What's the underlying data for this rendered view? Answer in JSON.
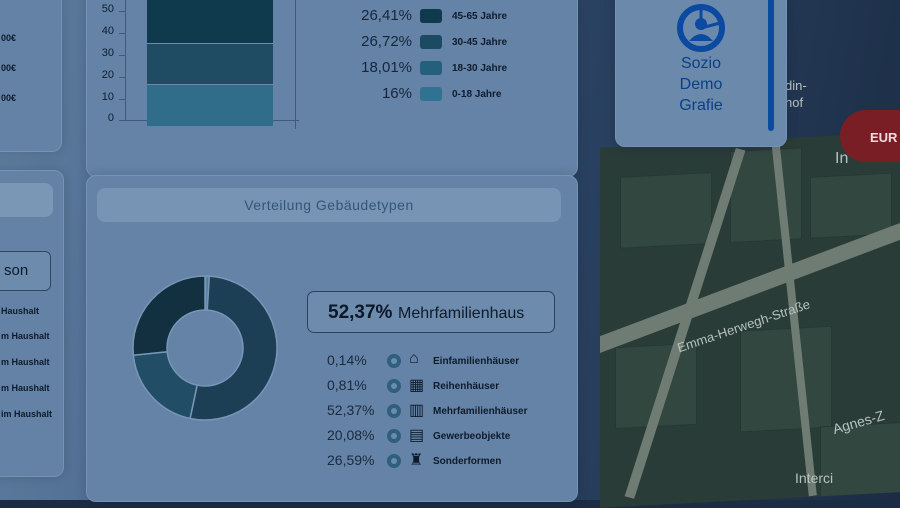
{
  "left_panel": {
    "top_values": [
      "00€",
      "00€",
      "00€"
    ],
    "search_text": "son",
    "household_items": [
      "Haushalt",
      "m Haushalt",
      "m Haushalt",
      "m Haushalt",
      "im Haushalt"
    ]
  },
  "age_chart": {
    "y_ticks": [
      "50",
      "40",
      "30",
      "20",
      "10",
      "0"
    ]
  },
  "age_legend": [
    {
      "pct": "26,41%",
      "label": "45-65 Jahre",
      "color": "#0f3a4d"
    },
    {
      "pct": "26,72%",
      "label": "30-45 Jahre",
      "color": "#1b4a62"
    },
    {
      "pct": "18,01%",
      "label": "18-30 Jahre",
      "color": "#245f7c"
    },
    {
      "pct": "16%",
      "label": "0-18 Jahre",
      "color": "#2f7291"
    }
  ],
  "building_card": {
    "title": "Verteilung Gebäudetypen",
    "highlight_pct": "52,37%",
    "highlight_label": "Mehrfamilienhaus",
    "items": [
      {
        "pct": "0,14%",
        "name": "Einfamilienhäuser",
        "icon": "house-icon"
      },
      {
        "pct": "0,81%",
        "name": "Reihenhäuser",
        "icon": "rowhouse-icon"
      },
      {
        "pct": "52,37%",
        "name": "Mehrfamilienhäuser",
        "icon": "apartment-icon"
      },
      {
        "pct": "20,08%",
        "name": "Gewerbeobjekte",
        "icon": "shop-icon"
      },
      {
        "pct": "26,59%",
        "name": "Sonderformen",
        "icon": "special-building-icon"
      }
    ]
  },
  "donut": {
    "segments": [
      {
        "value": 0.14,
        "color": "#3e6f8e"
      },
      {
        "value": 0.81,
        "color": "#4d7f9e"
      },
      {
        "value": 52.37,
        "color": "#1c3f55"
      },
      {
        "value": 20.08,
        "color": "#214d66"
      },
      {
        "value": 26.59,
        "color": "#12303f"
      }
    ]
  },
  "nav_item": {
    "line1": "Sozio",
    "line2": "Demo",
    "line3": "Grafie"
  },
  "map": {
    "street": "Emma-Herwegh-Straße",
    "label_a": "din-",
    "label_b": "hof",
    "label_c": "In",
    "label_d": "Agnes-Z",
    "label_e": "Interci",
    "badge": "EUR"
  },
  "colors": {
    "accent": "#0b4aa0",
    "card": "#6483a6"
  }
}
